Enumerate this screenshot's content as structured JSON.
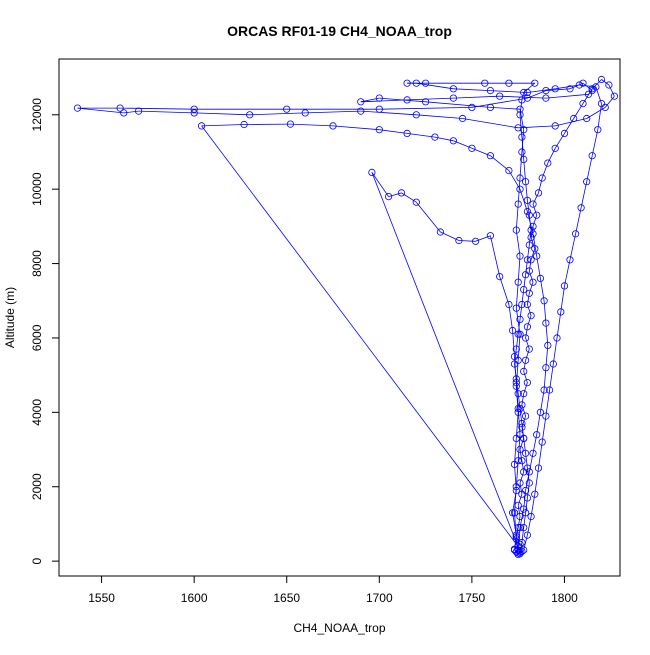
{
  "chart_data": {
    "type": "line",
    "title": "ORCAS RF01-19 CH4_NOAA_trop",
    "xlabel": "CH4_NOAA_trop",
    "ylabel": "Altitude (m)",
    "xlim": [
      1527,
      1830
    ],
    "ylim": [
      -400,
      13500
    ],
    "xticks": [
      1550,
      1600,
      1650,
      1700,
      1750,
      1800
    ],
    "yticks": [
      0,
      2000,
      4000,
      6000,
      8000,
      10000,
      12000
    ],
    "grid": false,
    "marker": "open-circle",
    "color": "#0000ff",
    "series": [
      {
        "points": [
          [
            1774,
            250
          ],
          [
            1775,
            180
          ],
          [
            1773,
            320
          ],
          [
            1776,
            450
          ],
          [
            1774,
            650
          ],
          [
            1775,
            900
          ],
          [
            1776,
            1200
          ],
          [
            1775,
            1500
          ],
          [
            1777,
            1800
          ],
          [
            1776,
            2100
          ],
          [
            1778,
            2400
          ],
          [
            1777,
            2700
          ],
          [
            1776,
            3000
          ],
          [
            1778,
            3300
          ],
          [
            1777,
            3600
          ],
          [
            1779,
            3900
          ],
          [
            1777,
            4200
          ],
          [
            1778,
            4500
          ],
          [
            1780,
            4800
          ],
          [
            1778,
            5100
          ],
          [
            1779,
            5400
          ],
          [
            1781,
            5700
          ],
          [
            1779,
            6000
          ],
          [
            1780,
            6300
          ],
          [
            1782,
            6600
          ],
          [
            1780,
            6900
          ],
          [
            1781,
            7200
          ],
          [
            1783,
            7500
          ],
          [
            1781,
            7800
          ],
          [
            1782,
            8100
          ],
          [
            1784,
            8400
          ],
          [
            1782,
            8700
          ],
          [
            1783,
            9000
          ],
          [
            1785,
            9300
          ],
          [
            1783,
            9600
          ],
          [
            1786,
            9900
          ],
          [
            1788,
            10300
          ],
          [
            1791,
            10700
          ],
          [
            1795,
            11100
          ],
          [
            1800,
            11500
          ],
          [
            1805,
            11900
          ],
          [
            1810,
            12300
          ],
          [
            1815,
            12700
          ],
          [
            1820,
            12950
          ],
          [
            1824,
            12800
          ],
          [
            1827,
            12500
          ],
          [
            1822,
            12200
          ],
          [
            1812,
            11900
          ],
          [
            1795,
            11700
          ],
          [
            1775,
            11650
          ],
          [
            1745,
            11900
          ],
          [
            1720,
            12000
          ],
          [
            1690,
            12100
          ],
          [
            1660,
            12050
          ],
          [
            1630,
            12000
          ],
          [
            1600,
            12050
          ],
          [
            1570,
            12100
          ],
          [
            1562,
            12050
          ],
          [
            1537,
            12180
          ],
          [
            1560,
            12180
          ],
          [
            1600,
            12150
          ],
          [
            1650,
            12150
          ],
          [
            1700,
            12150
          ],
          [
            1750,
            12200
          ],
          [
            1780,
            12450
          ],
          [
            1790,
            12650
          ],
          [
            1803,
            12700
          ],
          [
            1810,
            12850
          ],
          [
            1815,
            12650
          ],
          [
            1813,
            12550
          ],
          [
            1790,
            12450
          ],
          [
            1765,
            12500
          ],
          [
            1740,
            12450
          ],
          [
            1715,
            12400
          ],
          [
            1690,
            12350
          ],
          [
            1700,
            12450
          ],
          [
            1725,
            12350
          ],
          [
            1760,
            12200
          ],
          [
            1776,
            12150
          ],
          [
            1778,
            11600
          ],
          [
            1777,
            11000
          ],
          [
            1776,
            10300
          ],
          [
            1775,
            9600
          ],
          [
            1774,
            8900
          ],
          [
            1776,
            8200
          ],
          [
            1775,
            7500
          ],
          [
            1774,
            6800
          ],
          [
            1776,
            6100
          ],
          [
            1775,
            5400
          ],
          [
            1774,
            4700
          ],
          [
            1775,
            4000
          ],
          [
            1774,
            3300
          ],
          [
            1773,
            2600
          ],
          [
            1774,
            1900
          ],
          [
            1772,
            1300
          ],
          [
            1774,
            700
          ],
          [
            1773,
            300
          ],
          [
            1775,
            220
          ],
          [
            1777,
            260
          ],
          [
            1604,
            11700
          ],
          [
            1627,
            11740
          ],
          [
            1652,
            11750
          ],
          [
            1675,
            11700
          ],
          [
            1700,
            11600
          ],
          [
            1715,
            11500
          ],
          [
            1730,
            11400
          ],
          [
            1740,
            11300
          ],
          [
            1750,
            11100
          ],
          [
            1760,
            10900
          ],
          [
            1770,
            10500
          ],
          [
            1776,
            10000
          ],
          [
            1780,
            9400
          ],
          [
            1783,
            8800
          ],
          [
            1785,
            8200
          ],
          [
            1787,
            7600
          ],
          [
            1789,
            7000
          ],
          [
            1790,
            6400
          ],
          [
            1791,
            5800
          ],
          [
            1790,
            5200
          ],
          [
            1789,
            4600
          ],
          [
            1787,
            4000
          ],
          [
            1785,
            3400
          ],
          [
            1783,
            2900
          ],
          [
            1781,
            2400
          ],
          [
            1779,
            1900
          ],
          [
            1778,
            1400
          ],
          [
            1776,
            900
          ],
          [
            1775,
            400
          ],
          [
            1776,
            200
          ],
          [
            1778,
            300
          ],
          [
            1780,
            700
          ],
          [
            1782,
            1200
          ],
          [
            1784,
            1800
          ],
          [
            1786,
            2500
          ],
          [
            1788,
            3200
          ],
          [
            1790,
            3900
          ],
          [
            1792,
            4600
          ],
          [
            1794,
            5300
          ],
          [
            1796,
            6000
          ],
          [
            1798,
            6700
          ],
          [
            1800,
            7400
          ],
          [
            1803,
            8100
          ],
          [
            1806,
            8800
          ],
          [
            1809,
            9500
          ],
          [
            1812,
            10200
          ],
          [
            1815,
            10900
          ],
          [
            1818,
            11600
          ],
          [
            1820,
            12300
          ],
          [
            1817,
            12750
          ],
          [
            1808,
            12800
          ],
          [
            1795,
            12700
          ],
          [
            1780,
            12600
          ],
          [
            1760,
            12650
          ],
          [
            1740,
            12700
          ],
          [
            1720,
            12850
          ],
          [
            1715,
            12850
          ],
          [
            1725,
            12850
          ],
          [
            1757,
            12850
          ],
          [
            1770,
            12850
          ],
          [
            1784,
            12850
          ],
          [
            1778,
            12600
          ],
          [
            1777,
            12400
          ],
          [
            1776,
            12000
          ],
          [
            1777,
            11400
          ],
          [
            1778,
            10800
          ],
          [
            1779,
            10200
          ],
          [
            1780,
            9700
          ],
          [
            1781,
            9300
          ],
          [
            1782,
            8900
          ],
          [
            1781,
            8500
          ],
          [
            1780,
            8100
          ],
          [
            1779,
            7700
          ],
          [
            1778,
            7300
          ],
          [
            1777,
            6900
          ],
          [
            1776,
            6500
          ],
          [
            1775,
            6100
          ],
          [
            1774,
            5700
          ],
          [
            1773,
            5300
          ],
          [
            1774,
            4900
          ],
          [
            1775,
            4500
          ],
          [
            1776,
            4100
          ],
          [
            1777,
            3700
          ],
          [
            1778,
            3300
          ],
          [
            1779,
            2900
          ],
          [
            1780,
            2500
          ],
          [
            1781,
            2100
          ],
          [
            1780,
            1700
          ],
          [
            1779,
            1300
          ],
          [
            1778,
            900
          ],
          [
            1777,
            500
          ],
          [
            1776,
            250
          ],
          [
            1696,
            10450
          ],
          [
            1705,
            9800
          ],
          [
            1712,
            9900
          ],
          [
            1720,
            9650
          ],
          [
            1733,
            8850
          ],
          [
            1743,
            8620
          ],
          [
            1752,
            8600
          ],
          [
            1760,
            8750
          ],
          [
            1765,
            7650
          ],
          [
            1770,
            6900
          ],
          [
            1772,
            6200
          ],
          [
            1773,
            5500
          ],
          [
            1774,
            4800
          ],
          [
            1775,
            4100
          ],
          [
            1776,
            3400
          ],
          [
            1775,
            2700
          ],
          [
            1774,
            2000
          ],
          [
            1773,
            1300
          ],
          [
            1774,
            600
          ],
          [
            1775,
            300
          ]
        ]
      }
    ]
  }
}
